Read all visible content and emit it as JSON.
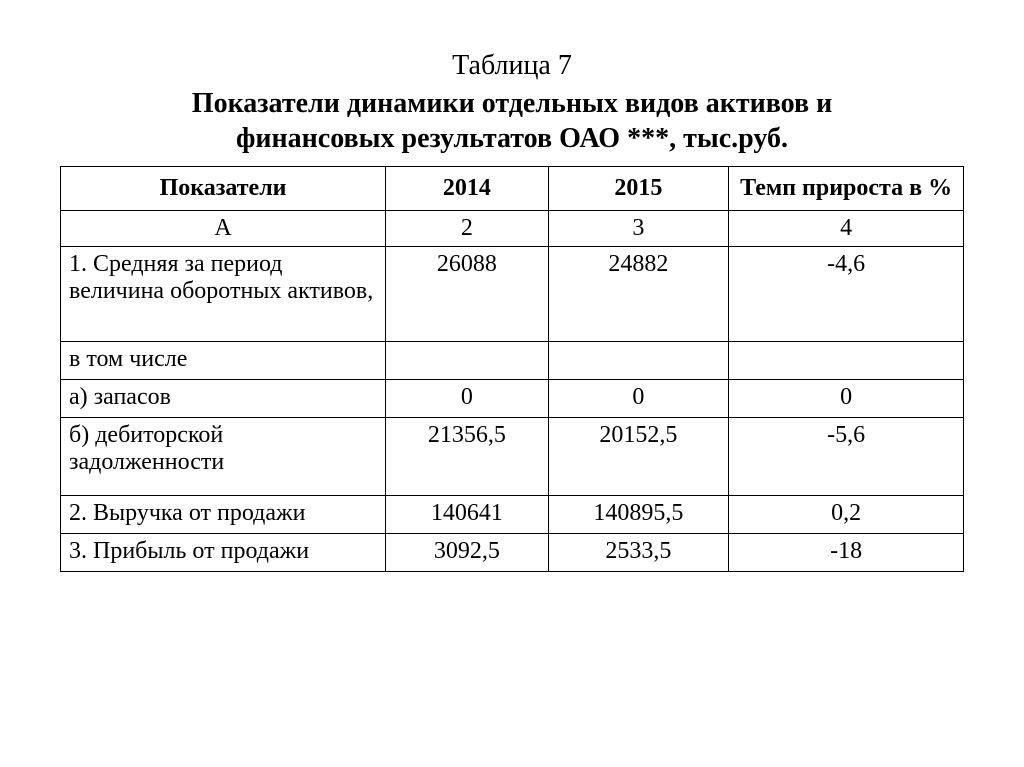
{
  "heading": {
    "table_number": "Таблица 7",
    "title_line1": "Показатели динамики отдельных видов активов и",
    "title_line2": "финансовых результатов ОАО ***, тыс.руб."
  },
  "table": {
    "columns": {
      "indicator": "Показатели",
      "year1": "2014",
      "year2": "2015",
      "rate": "Темп прироста в %"
    },
    "subheader": {
      "indicator": "А",
      "year1": "2",
      "year2": "3",
      "rate": "4"
    },
    "rows": [
      {
        "label": "1. Средняя за период величина оборотных активов,",
        "year1": "26088",
        "year2": "24882",
        "rate": "-4,6",
        "height": "row-tall"
      },
      {
        "label": "в том числе",
        "year1": "",
        "year2": "",
        "rate": "",
        "height": "row-short"
      },
      {
        "label": "а) запасов",
        "year1": "0",
        "year2": "0",
        "rate": "0",
        "height": "row-short"
      },
      {
        "label": "б) дебиторской задолженности",
        "year1": "21356,5",
        "year2": "20152,5",
        "rate": "-5,6",
        "height": "row-med"
      },
      {
        "label": "2. Выручка от продажи",
        "year1": "140641",
        "year2": "140895,5",
        "rate": "0,2",
        "height": "row-short"
      },
      {
        "label": "3. Прибыль от продажи",
        "year1": "3092,5",
        "year2": "2533,5",
        "rate": "-18",
        "height": "row-short"
      }
    ]
  },
  "style": {
    "background_color": "#ffffff",
    "text_color": "#000000",
    "border_color": "#000000",
    "font_family": "Times New Roman",
    "title_fontsize": 28,
    "cell_fontsize": 24
  }
}
